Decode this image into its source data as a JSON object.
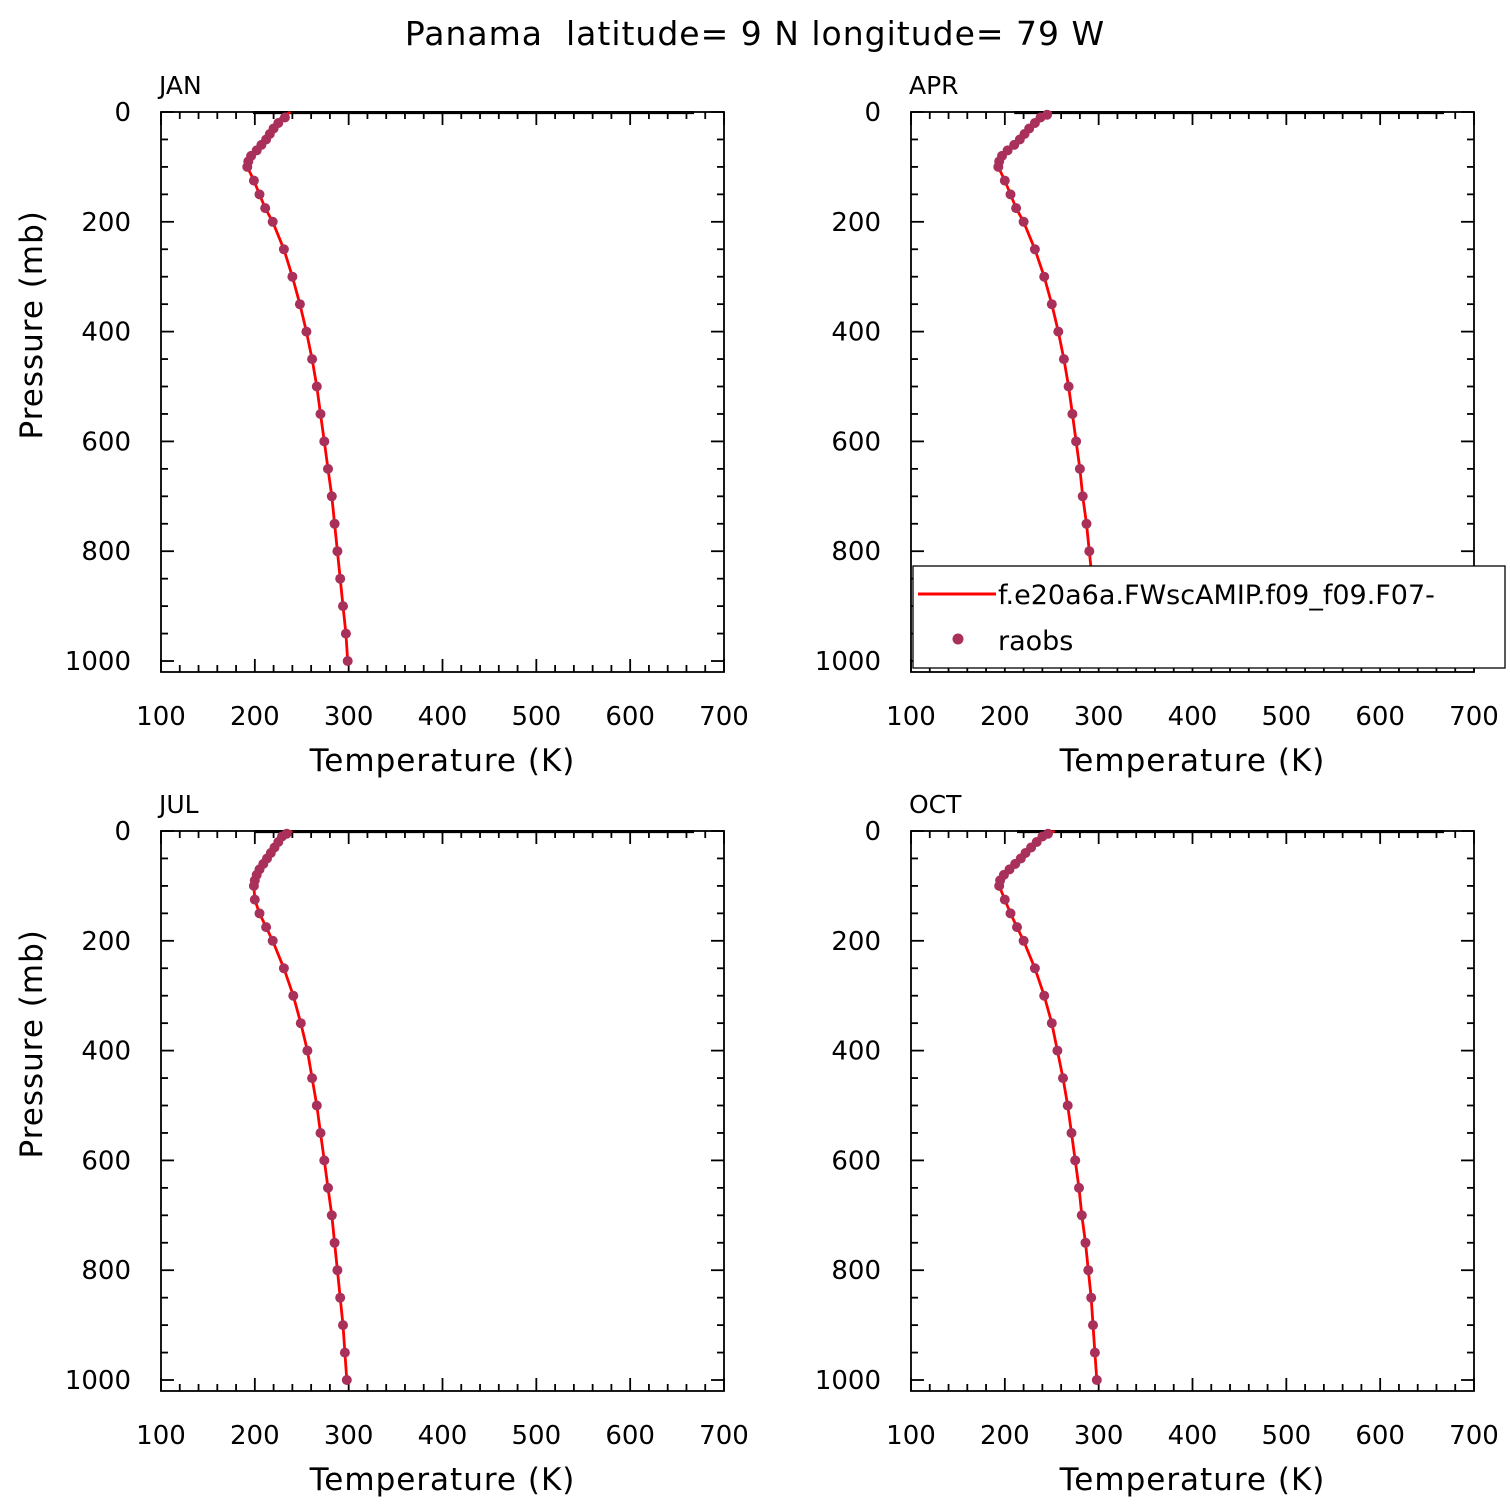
{
  "figure": {
    "title": "Panama  latitude= 9 N longitude= 79 W"
  },
  "legend": {
    "model_label": "f.e20a6a.FWscAMIP.f09_f09.F07-",
    "obs_label": "raobs"
  },
  "colors": {
    "model_line": "#ff0000",
    "obs_marker": "#a8305a",
    "axes": "#000000"
  },
  "chart_data": [
    {
      "type": "line",
      "panel_label": "JAN",
      "xlabel": "Temperature (K)",
      "ylabel": "Pressure (mb)",
      "xlim": [
        100,
        700
      ],
      "ylim": [
        1020,
        0
      ],
      "x_ticks": [
        "100",
        "200",
        "300",
        "400",
        "500",
        "600",
        "700"
      ],
      "y_ticks": [
        "0",
        "200",
        "400",
        "600",
        "800",
        "1000"
      ],
      "series": [
        {
          "name": "f.e20a6a.FWscAMIP.f09_f09.F07-",
          "style": "line",
          "points": [
            [
              238,
              0
            ],
            [
              233,
              5
            ],
            [
              228,
              10
            ],
            [
              224,
              20
            ],
            [
              220,
              30
            ],
            [
              216,
              40
            ],
            [
              212,
              50
            ],
            [
              207,
              60
            ],
            [
              202,
              70
            ],
            [
              196,
              80
            ],
            [
              193,
              90
            ],
            [
              192,
              100
            ],
            [
              199,
              125
            ],
            [
              205,
              150
            ],
            [
              211,
              175
            ],
            [
              219,
              200
            ],
            [
              231,
              250
            ],
            [
              240,
              300
            ],
            [
              248,
              350
            ],
            [
              255,
              400
            ],
            [
              261,
              450
            ],
            [
              266,
              500
            ],
            [
              270,
              550
            ],
            [
              274,
              600
            ],
            [
              278,
              650
            ],
            [
              282,
              700
            ],
            [
              285,
              750
            ],
            [
              288,
              800
            ],
            [
              291,
              850
            ],
            [
              294,
              900
            ],
            [
              297,
              950
            ],
            [
              299,
              1000
            ]
          ]
        },
        {
          "name": "raobs",
          "style": "markers",
          "points": [
            [
              232,
              10
            ],
            [
              225,
              20
            ],
            [
              220,
              30
            ],
            [
              216,
              40
            ],
            [
              212,
              50
            ],
            [
              207,
              60
            ],
            [
              202,
              70
            ],
            [
              196,
              80
            ],
            [
              193,
              90
            ],
            [
              192,
              100
            ],
            [
              199,
              125
            ],
            [
              205,
              150
            ],
            [
              211,
              175
            ],
            [
              219,
              200
            ],
            [
              231,
              250
            ],
            [
              240,
              300
            ],
            [
              248,
              350
            ],
            [
              255,
              400
            ],
            [
              261,
              450
            ],
            [
              266,
              500
            ],
            [
              270,
              550
            ],
            [
              274,
              600
            ],
            [
              278,
              650
            ],
            [
              282,
              700
            ],
            [
              285,
              750
            ],
            [
              288,
              800
            ],
            [
              291,
              850
            ],
            [
              294,
              900
            ],
            [
              297,
              950
            ],
            [
              299,
              1000
            ]
          ]
        }
      ]
    },
    {
      "type": "line",
      "panel_label": "APR",
      "xlabel": "Temperature (K)",
      "ylabel": "",
      "xlim": [
        100,
        700
      ],
      "ylim": [
        1020,
        0
      ],
      "x_ticks": [
        "100",
        "200",
        "300",
        "400",
        "500",
        "600",
        "700"
      ],
      "y_ticks": [
        "0",
        "200",
        "400",
        "600",
        "800",
        "1000"
      ],
      "series": [
        {
          "name": "f.e20a6a.FWscAMIP.f09_f09.F07-",
          "style": "line",
          "points": [
            [
              250,
              0
            ],
            [
              243,
              5
            ],
            [
              237,
              10
            ],
            [
              231,
              20
            ],
            [
              226,
              30
            ],
            [
              221,
              40
            ],
            [
              216,
              50
            ],
            [
              210,
              60
            ],
            [
              203,
              70
            ],
            [
              197,
              80
            ],
            [
              194,
              90
            ],
            [
              193,
              100
            ],
            [
              200,
              125
            ],
            [
              206,
              150
            ],
            [
              212,
              175
            ],
            [
              220,
              200
            ],
            [
              232,
              250
            ],
            [
              242,
              300
            ],
            [
              250,
              350
            ],
            [
              257,
              400
            ],
            [
              263,
              450
            ],
            [
              268,
              500
            ],
            [
              272,
              550
            ],
            [
              276,
              600
            ],
            [
              280,
              650
            ],
            [
              283,
              700
            ],
            [
              287,
              750
            ],
            [
              290,
              800
            ],
            [
              293,
              850
            ],
            [
              295,
              900
            ],
            [
              298,
              950
            ],
            [
              300,
              1000
            ]
          ]
        },
        {
          "name": "raobs",
          "style": "markers",
          "points": [
            [
              245,
              5
            ],
            [
              238,
              10
            ],
            [
              232,
              20
            ],
            [
              226,
              30
            ],
            [
              221,
              40
            ],
            [
              216,
              50
            ],
            [
              210,
              60
            ],
            [
              203,
              70
            ],
            [
              197,
              80
            ],
            [
              194,
              90
            ],
            [
              193,
              100
            ],
            [
              200,
              125
            ],
            [
              206,
              150
            ],
            [
              212,
              175
            ],
            [
              220,
              200
            ],
            [
              232,
              250
            ],
            [
              242,
              300
            ],
            [
              250,
              350
            ],
            [
              257,
              400
            ],
            [
              263,
              450
            ],
            [
              268,
              500
            ],
            [
              272,
              550
            ],
            [
              276,
              600
            ],
            [
              280,
              650
            ],
            [
              283,
              700
            ],
            [
              287,
              750
            ],
            [
              290,
              800
            ],
            [
              293,
              850
            ],
            [
              295,
              900
            ],
            [
              298,
              950
            ],
            [
              300,
              1000
            ]
          ]
        }
      ]
    },
    {
      "type": "line",
      "panel_label": "JUL",
      "xlabel": "Temperature (K)",
      "ylabel": "Pressure (mb)",
      "xlim": [
        100,
        700
      ],
      "ylim": [
        1020,
        0
      ],
      "x_ticks": [
        "100",
        "200",
        "300",
        "400",
        "500",
        "600",
        "700"
      ],
      "y_ticks": [
        "0",
        "200",
        "400",
        "600",
        "800",
        "1000"
      ],
      "series": [
        {
          "name": "f.e20a6a.FWscAMIP.f09_f09.F07-",
          "style": "line",
          "points": [
            [
              240,
              0
            ],
            [
              234,
              5
            ],
            [
              229,
              10
            ],
            [
              225,
              20
            ],
            [
              221,
              30
            ],
            [
              217,
              40
            ],
            [
              213,
              50
            ],
            [
              209,
              60
            ],
            [
              205,
              70
            ],
            [
              202,
              80
            ],
            [
              200,
              90
            ],
            [
              199,
              100
            ],
            [
              200,
              125
            ],
            [
              205,
              150
            ],
            [
              212,
              175
            ],
            [
              219,
              200
            ],
            [
              231,
              250
            ],
            [
              241,
              300
            ],
            [
              249,
              350
            ],
            [
              256,
              400
            ],
            [
              261,
              450
            ],
            [
              266,
              500
            ],
            [
              270,
              550
            ],
            [
              274,
              600
            ],
            [
              278,
              650
            ],
            [
              282,
              700
            ],
            [
              285,
              750
            ],
            [
              288,
              800
            ],
            [
              291,
              850
            ],
            [
              294,
              900
            ],
            [
              296,
              950
            ],
            [
              298,
              1000
            ]
          ]
        },
        {
          "name": "raobs",
          "style": "markers",
          "points": [
            [
              234,
              5
            ],
            [
              229,
              10
            ],
            [
              225,
              20
            ],
            [
              221,
              30
            ],
            [
              217,
              40
            ],
            [
              213,
              50
            ],
            [
              209,
              60
            ],
            [
              205,
              70
            ],
            [
              202,
              80
            ],
            [
              200,
              90
            ],
            [
              199,
              100
            ],
            [
              200,
              125
            ],
            [
              205,
              150
            ],
            [
              212,
              175
            ],
            [
              219,
              200
            ],
            [
              231,
              250
            ],
            [
              241,
              300
            ],
            [
              249,
              350
            ],
            [
              256,
              400
            ],
            [
              261,
              450
            ],
            [
              266,
              500
            ],
            [
              270,
              550
            ],
            [
              274,
              600
            ],
            [
              278,
              650
            ],
            [
              282,
              700
            ],
            [
              285,
              750
            ],
            [
              288,
              800
            ],
            [
              291,
              850
            ],
            [
              294,
              900
            ],
            [
              296,
              950
            ],
            [
              298,
              1000
            ]
          ]
        }
      ]
    },
    {
      "type": "line",
      "panel_label": "OCT",
      "xlabel": "Temperature (K)",
      "ylabel": "",
      "xlim": [
        100,
        700
      ],
      "ylim": [
        1020,
        0
      ],
      "x_ticks": [
        "100",
        "200",
        "300",
        "400",
        "500",
        "600",
        "700"
      ],
      "y_ticks": [
        "0",
        "200",
        "400",
        "600",
        "800",
        "1000"
      ],
      "series": [
        {
          "name": "f.e20a6a.FWscAMIP.f09_f09.F07-",
          "style": "line",
          "points": [
            [
              253,
              0
            ],
            [
              246,
              5
            ],
            [
              240,
              10
            ],
            [
              234,
              20
            ],
            [
              228,
              30
            ],
            [
              222,
              40
            ],
            [
              217,
              50
            ],
            [
              211,
              60
            ],
            [
              205,
              70
            ],
            [
              199,
              80
            ],
            [
              195,
              90
            ],
            [
              194,
              100
            ],
            [
              200,
              125
            ],
            [
              206,
              150
            ],
            [
              213,
              175
            ],
            [
              220,
              200
            ],
            [
              232,
              250
            ],
            [
              242,
              300
            ],
            [
              250,
              350
            ],
            [
              256,
              400
            ],
            [
              262,
              450
            ],
            [
              267,
              500
            ],
            [
              271,
              550
            ],
            [
              275,
              600
            ],
            [
              279,
              650
            ],
            [
              282,
              700
            ],
            [
              286,
              750
            ],
            [
              289,
              800
            ],
            [
              292,
              850
            ],
            [
              294,
              900
            ],
            [
              296,
              950
            ],
            [
              298,
              1000
            ]
          ]
        },
        {
          "name": "raobs",
          "style": "markers",
          "points": [
            [
              246,
              5
            ],
            [
              240,
              10
            ],
            [
              234,
              20
            ],
            [
              228,
              30
            ],
            [
              222,
              40
            ],
            [
              217,
              50
            ],
            [
              211,
              60
            ],
            [
              205,
              70
            ],
            [
              199,
              80
            ],
            [
              195,
              90
            ],
            [
              194,
              100
            ],
            [
              200,
              125
            ],
            [
              206,
              150
            ],
            [
              213,
              175
            ],
            [
              220,
              200
            ],
            [
              232,
              250
            ],
            [
              242,
              300
            ],
            [
              250,
              350
            ],
            [
              256,
              400
            ],
            [
              262,
              450
            ],
            [
              267,
              500
            ],
            [
              271,
              550
            ],
            [
              275,
              600
            ],
            [
              279,
              650
            ],
            [
              282,
              700
            ],
            [
              286,
              750
            ],
            [
              289,
              800
            ],
            [
              292,
              850
            ],
            [
              294,
              900
            ],
            [
              296,
              950
            ],
            [
              298,
              1000
            ]
          ]
        }
      ]
    }
  ]
}
